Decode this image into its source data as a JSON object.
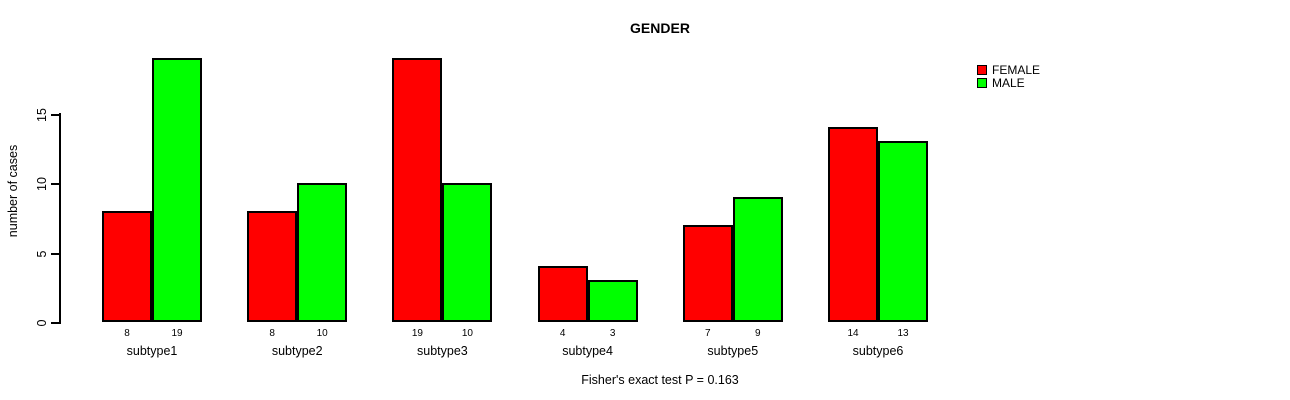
{
  "title": "GENDER",
  "caption": "Fisher's exact test P = 0.163",
  "y_axis": {
    "label": "number of cases",
    "ticks": [
      0,
      5,
      10,
      15
    ]
  },
  "legend": {
    "position": "top-right",
    "entries": [
      {
        "label": "FEMALE",
        "color": "#ff0000"
      },
      {
        "label": "MALE",
        "color": "#00ff00"
      }
    ]
  },
  "chart_data": {
    "type": "bar",
    "title": "GENDER",
    "xlabel": "",
    "ylabel": "number of cases",
    "ylim": [
      0,
      19
    ],
    "grid": false,
    "legend_position": "top-right",
    "annotation": "Fisher's exact test P = 0.163",
    "bar_value_labels_shown": true,
    "categories": [
      "subtype1",
      "subtype2",
      "subtype3",
      "subtype4",
      "subtype5",
      "subtype6"
    ],
    "series": [
      {
        "name": "FEMALE",
        "color": "#ff0000",
        "values": [
          8,
          8,
          19,
          4,
          7,
          14
        ]
      },
      {
        "name": "MALE",
        "color": "#00ff00",
        "values": [
          19,
          10,
          10,
          3,
          9,
          13
        ]
      }
    ]
  }
}
